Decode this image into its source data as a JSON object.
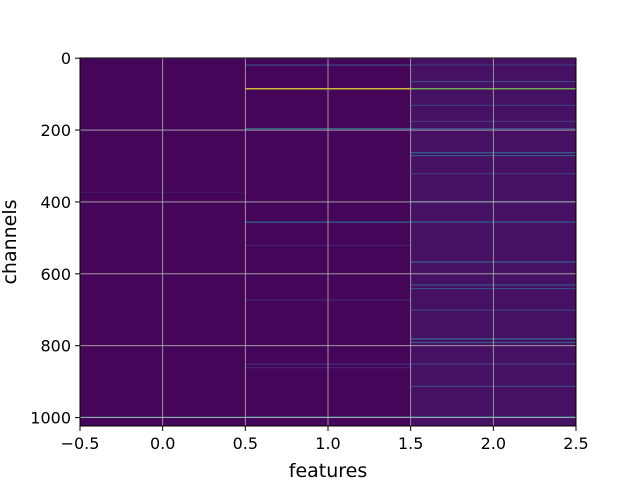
{
  "chart_data": {
    "type": "heatmap",
    "title": "",
    "xlabel": "features",
    "ylabel": "channels",
    "xlim": [
      -0.5,
      2.5
    ],
    "ylim": [
      1023.5,
      -0.5
    ],
    "y_inverted": true,
    "grid": true,
    "colormap": "viridis",
    "x_ticks": [
      -0.5,
      0.0,
      0.5,
      1.0,
      1.5,
      2.0,
      2.5
    ],
    "x_tick_labels": [
      "−0.5",
      "0.0",
      "0.5",
      "1.0",
      "1.5",
      "2.0",
      "2.5"
    ],
    "y_ticks": [
      0,
      200,
      400,
      600,
      800,
      1000
    ],
    "y_tick_labels": [
      "0",
      "200",
      "400",
      "600",
      "800",
      "1000"
    ],
    "columns": [
      {
        "feature": 0,
        "background": 0.02,
        "lines": [
          {
            "channel": 372,
            "value": 0.08
          },
          {
            "channel": 998,
            "value": 0.45
          }
        ]
      },
      {
        "feature": 1,
        "background": 0.02,
        "lines": [
          {
            "channel": 18,
            "value": 0.3
          },
          {
            "channel": 84,
            "value": 0.98
          },
          {
            "channel": 195,
            "value": 0.4
          },
          {
            "channel": 455,
            "value": 0.45
          },
          {
            "channel": 520,
            "value": 0.12
          },
          {
            "channel": 672,
            "value": 0.14
          },
          {
            "channel": 850,
            "value": 0.18
          },
          {
            "channel": 860,
            "value": 0.12
          },
          {
            "channel": 997,
            "value": 0.38
          }
        ]
      },
      {
        "feature": 2,
        "background": 0.06,
        "lines": [
          {
            "channel": 18,
            "value": 0.2
          },
          {
            "channel": 64,
            "value": 0.25
          },
          {
            "channel": 84,
            "value": 0.85
          },
          {
            "channel": 130,
            "value": 0.22
          },
          {
            "channel": 175,
            "value": 0.2
          },
          {
            "channel": 195,
            "value": 0.3
          },
          {
            "channel": 262,
            "value": 0.42
          },
          {
            "channel": 270,
            "value": 0.35
          },
          {
            "channel": 320,
            "value": 0.2
          },
          {
            "channel": 398,
            "value": 0.35
          },
          {
            "channel": 455,
            "value": 0.4
          },
          {
            "channel": 566,
            "value": 0.38
          },
          {
            "channel": 630,
            "value": 0.34
          },
          {
            "channel": 640,
            "value": 0.28
          },
          {
            "channel": 700,
            "value": 0.22
          },
          {
            "channel": 780,
            "value": 0.45
          },
          {
            "channel": 790,
            "value": 0.35
          },
          {
            "channel": 850,
            "value": 0.22
          },
          {
            "channel": 912,
            "value": 0.25
          },
          {
            "channel": 997,
            "value": 0.42
          }
        ]
      }
    ]
  }
}
